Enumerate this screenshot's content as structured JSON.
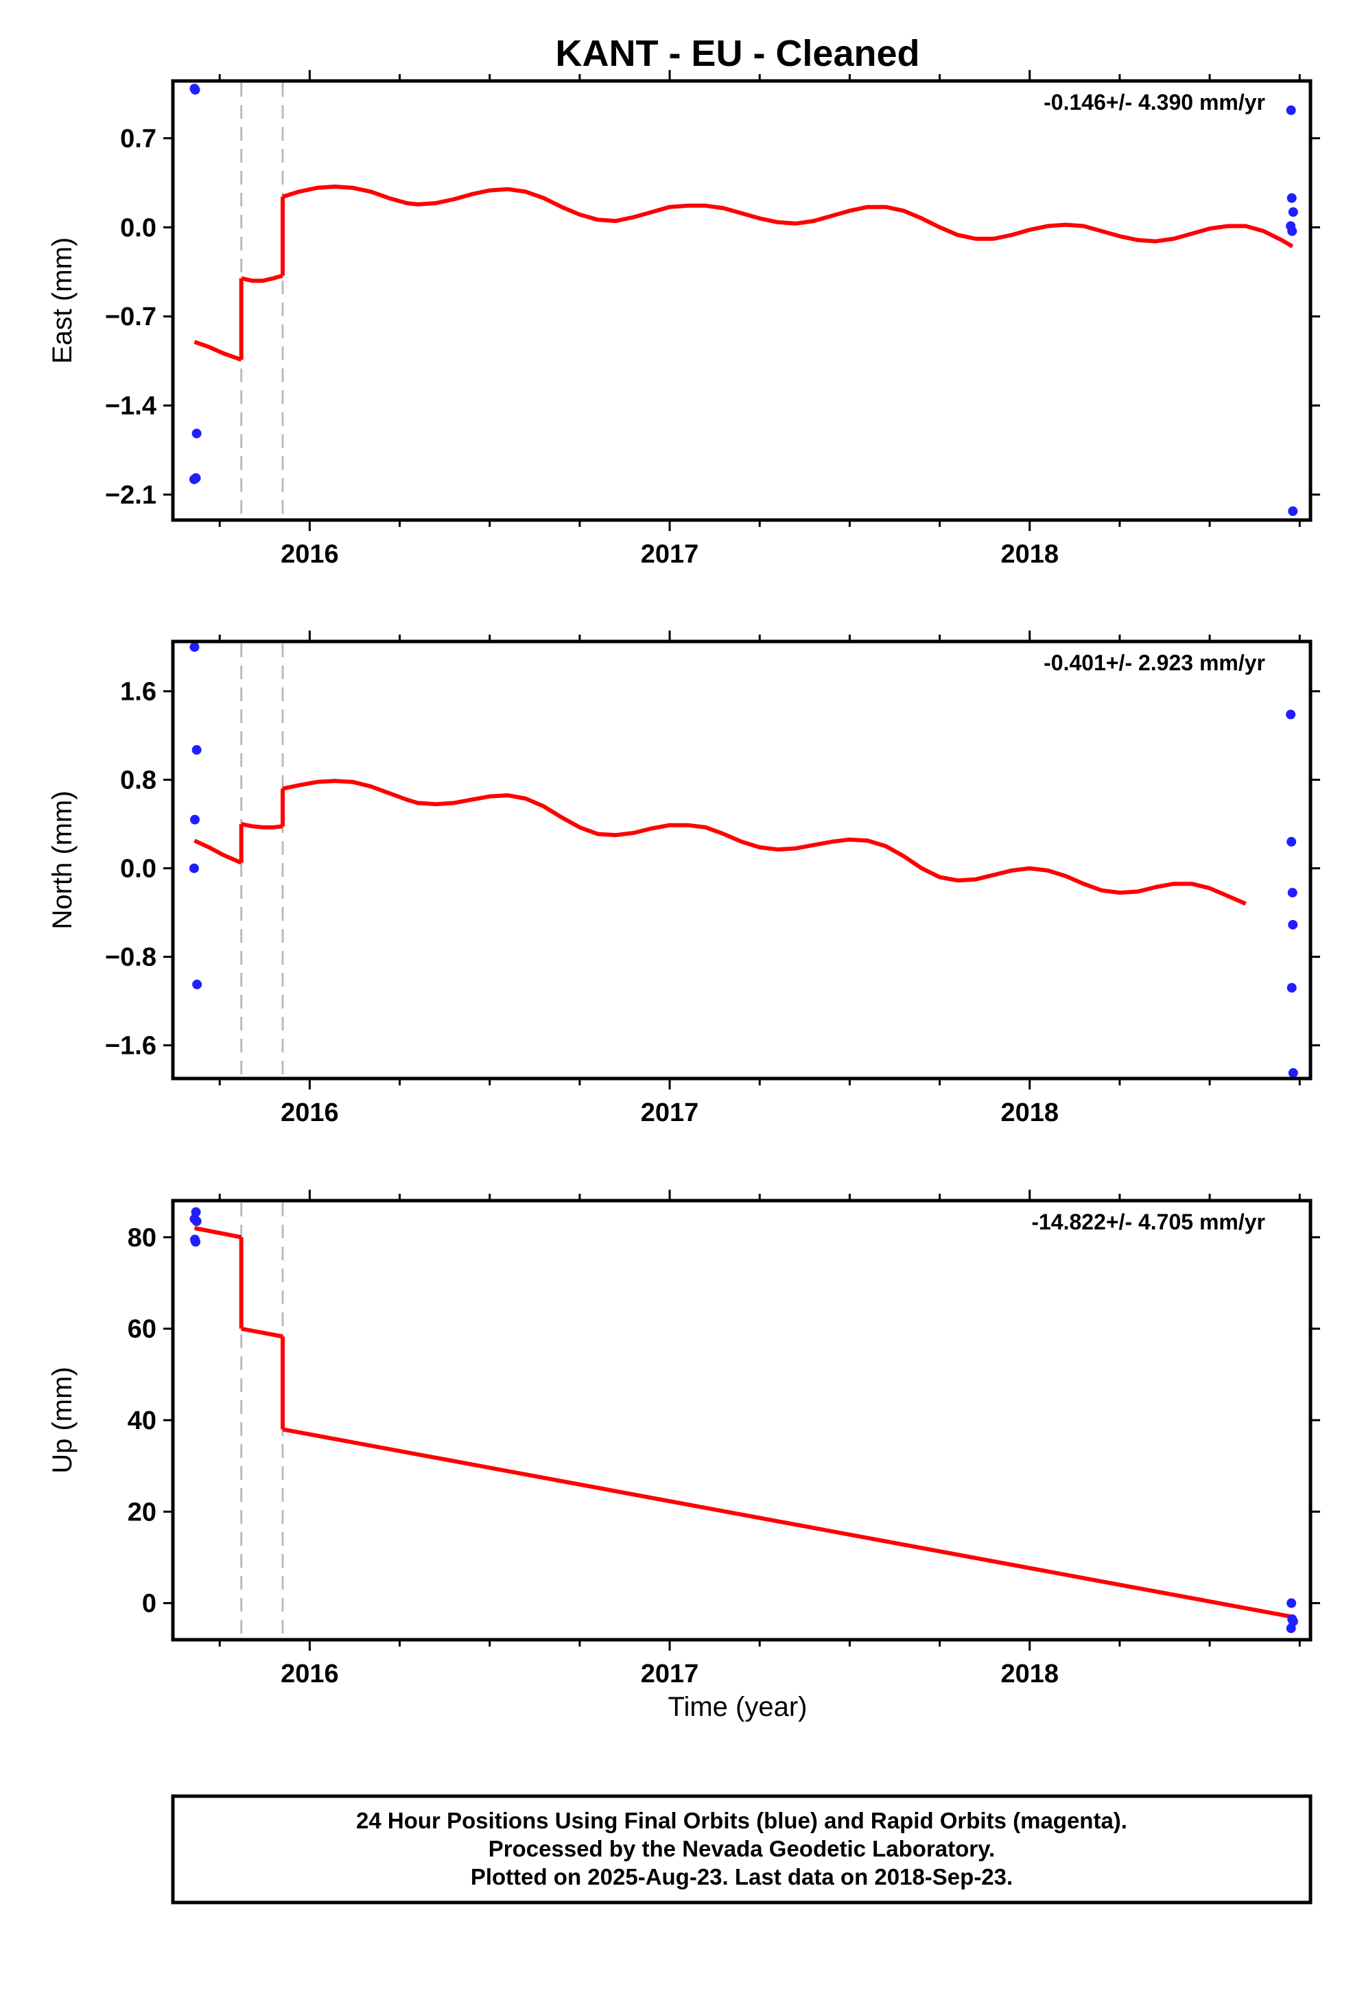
{
  "title": "KANT  - EU - Cleaned",
  "xlabel": "Time (year)",
  "footer": {
    "line1": "24 Hour Positions Using Final Orbits (blue) and Rapid Orbits (magenta).",
    "line2": "Processed by the Nevada Geodetic Laboratory.",
    "line3": "Plotted on 2025-Aug-23. Last data on 2018-Sep-23."
  },
  "colors": {
    "points": "#1f1fff",
    "model": "#ff0000",
    "breaks": "#bbbbbb",
    "axis": "#000000"
  },
  "chart_data": [
    {
      "type": "scatter",
      "name": "east",
      "ylabel": "East (mm)",
      "rate_label": "-0.146+/- 4.390 mm/yr",
      "xlim": [
        2015.62,
        2018.78
      ],
      "ylim": [
        -2.3,
        1.15
      ],
      "yticks": [
        -2.1,
        -1.4,
        -0.7,
        0.0,
        0.7
      ],
      "ytick_labels": [
        "−2.1",
        "−1.4",
        "−0.7",
        "0.0",
        "0.7"
      ],
      "xticks": [
        2016,
        2017,
        2018
      ],
      "xtick_labels": [
        "2016",
        "2017",
        "2018"
      ],
      "breaks": [
        2015.81,
        2015.925
      ],
      "points": [
        [
          2015.68,
          1.09
        ],
        [
          2015.682,
          1.08
        ],
        [
          2015.686,
          -1.62
        ],
        [
          2015.679,
          -1.98
        ],
        [
          2015.684,
          -1.97
        ],
        [
          2018.726,
          0.92
        ],
        [
          2018.728,
          0.23
        ],
        [
          2018.732,
          0.12
        ],
        [
          2018.725,
          0.01
        ],
        [
          2018.729,
          -0.03
        ],
        [
          2018.731,
          -2.23
        ]
      ],
      "model": [
        [
          [
            2015.68,
            -0.9
          ],
          [
            2015.72,
            -0.94
          ],
          [
            2015.76,
            -0.99
          ],
          [
            2015.81,
            -1.04
          ]
        ],
        [
          [
            2015.81,
            -0.4
          ],
          [
            2015.84,
            -0.42
          ],
          [
            2015.87,
            -0.42
          ],
          [
            2015.9,
            -0.4
          ],
          [
            2015.925,
            -0.38
          ]
        ],
        [
          [
            2015.925,
            0.24
          ],
          [
            2015.97,
            0.28
          ],
          [
            2016.02,
            0.31
          ],
          [
            2016.07,
            0.32
          ],
          [
            2016.12,
            0.31
          ],
          [
            2016.17,
            0.28
          ],
          [
            2016.22,
            0.23
          ],
          [
            2016.27,
            0.19
          ],
          [
            2016.3,
            0.18
          ],
          [
            2016.35,
            0.19
          ],
          [
            2016.4,
            0.22
          ],
          [
            2016.45,
            0.26
          ],
          [
            2016.5,
            0.29
          ],
          [
            2016.55,
            0.3
          ],
          [
            2016.6,
            0.28
          ],
          [
            2016.65,
            0.23
          ],
          [
            2016.7,
            0.16
          ],
          [
            2016.75,
            0.1
          ],
          [
            2016.8,
            0.06
          ],
          [
            2016.85,
            0.05
          ],
          [
            2016.9,
            0.08
          ],
          [
            2016.95,
            0.12
          ],
          [
            2017.0,
            0.16
          ],
          [
            2017.05,
            0.17
          ],
          [
            2017.1,
            0.17
          ],
          [
            2017.15,
            0.15
          ],
          [
            2017.2,
            0.11
          ],
          [
            2017.25,
            0.07
          ],
          [
            2017.3,
            0.04
          ],
          [
            2017.35,
            0.03
          ],
          [
            2017.4,
            0.05
          ],
          [
            2017.45,
            0.09
          ],
          [
            2017.5,
            0.13
          ],
          [
            2017.55,
            0.16
          ],
          [
            2017.6,
            0.16
          ],
          [
            2017.65,
            0.13
          ],
          [
            2017.7,
            0.07
          ],
          [
            2017.75,
            0.0
          ],
          [
            2017.8,
            -0.06
          ],
          [
            2017.85,
            -0.09
          ],
          [
            2017.9,
            -0.09
          ],
          [
            2017.95,
            -0.06
          ],
          [
            2018.0,
            -0.02
          ],
          [
            2018.05,
            0.01
          ],
          [
            2018.1,
            0.02
          ],
          [
            2018.15,
            0.01
          ],
          [
            2018.2,
            -0.03
          ],
          [
            2018.25,
            -0.07
          ],
          [
            2018.3,
            -0.1
          ],
          [
            2018.35,
            -0.11
          ],
          [
            2018.4,
            -0.09
          ],
          [
            2018.45,
            -0.05
          ],
          [
            2018.5,
            -0.01
          ],
          [
            2018.55,
            0.01
          ],
          [
            2018.6,
            0.01
          ],
          [
            2018.65,
            -0.03
          ],
          [
            2018.7,
            -0.1
          ],
          [
            2018.73,
            -0.15
          ]
        ]
      ]
    },
    {
      "type": "scatter",
      "name": "north",
      "ylabel": "North (mm)",
      "rate_label": "-0.401+/- 2.923 mm/yr",
      "xlim": [
        2015.62,
        2018.78
      ],
      "ylim": [
        -1.9,
        2.05
      ],
      "yticks": [
        -1.6,
        -0.8,
        0.0,
        0.8,
        1.6
      ],
      "ytick_labels": [
        "−1.6",
        "−0.8",
        "0.0",
        "0.8",
        "1.6"
      ],
      "xticks": [
        2016,
        2017,
        2018
      ],
      "xtick_labels": [
        "2016",
        "2017",
        "2018"
      ],
      "breaks": [
        2015.81,
        2015.925
      ],
      "points": [
        [
          2015.68,
          2.0
        ],
        [
          2015.686,
          1.07
        ],
        [
          2015.681,
          0.44
        ],
        [
          2015.679,
          0.0
        ],
        [
          2015.687,
          -1.05
        ],
        [
          2018.725,
          1.39
        ],
        [
          2018.727,
          0.24
        ],
        [
          2018.73,
          -0.22
        ],
        [
          2018.731,
          -0.51
        ],
        [
          2018.728,
          -1.08
        ],
        [
          2018.732,
          -1.85
        ]
      ],
      "model": [
        [
          [
            2015.68,
            0.25
          ],
          [
            2015.72,
            0.19
          ],
          [
            2015.76,
            0.12
          ],
          [
            2015.81,
            0.05
          ]
        ],
        [
          [
            2015.81,
            0.4
          ],
          [
            2015.84,
            0.38
          ],
          [
            2015.87,
            0.37
          ],
          [
            2015.9,
            0.37
          ],
          [
            2015.925,
            0.38
          ]
        ],
        [
          [
            2015.925,
            0.72
          ],
          [
            2015.97,
            0.75
          ],
          [
            2016.02,
            0.78
          ],
          [
            2016.07,
            0.79
          ],
          [
            2016.12,
            0.78
          ],
          [
            2016.17,
            0.74
          ],
          [
            2016.22,
            0.68
          ],
          [
            2016.27,
            0.62
          ],
          [
            2016.3,
            0.59
          ],
          [
            2016.35,
            0.58
          ],
          [
            2016.4,
            0.59
          ],
          [
            2016.45,
            0.62
          ],
          [
            2016.5,
            0.65
          ],
          [
            2016.55,
            0.66
          ],
          [
            2016.6,
            0.63
          ],
          [
            2016.65,
            0.56
          ],
          [
            2016.7,
            0.46
          ],
          [
            2016.75,
            0.37
          ],
          [
            2016.8,
            0.31
          ],
          [
            2016.85,
            0.3
          ],
          [
            2016.9,
            0.32
          ],
          [
            2016.95,
            0.36
          ],
          [
            2017.0,
            0.39
          ],
          [
            2017.05,
            0.39
          ],
          [
            2017.1,
            0.37
          ],
          [
            2017.15,
            0.31
          ],
          [
            2017.2,
            0.24
          ],
          [
            2017.25,
            0.19
          ],
          [
            2017.3,
            0.17
          ],
          [
            2017.35,
            0.18
          ],
          [
            2017.4,
            0.21
          ],
          [
            2017.45,
            0.24
          ],
          [
            2017.5,
            0.26
          ],
          [
            2017.55,
            0.25
          ],
          [
            2017.6,
            0.2
          ],
          [
            2017.65,
            0.11
          ],
          [
            2017.7,
            0.0
          ],
          [
            2017.75,
            -0.08
          ],
          [
            2017.8,
            -0.11
          ],
          [
            2017.85,
            -0.1
          ],
          [
            2017.9,
            -0.06
          ],
          [
            2017.95,
            -0.02
          ],
          [
            2018.0,
            0.0
          ],
          [
            2018.05,
            -0.02
          ],
          [
            2018.1,
            -0.07
          ],
          [
            2018.15,
            -0.14
          ],
          [
            2018.2,
            -0.2
          ],
          [
            2018.25,
            -0.22
          ],
          [
            2018.3,
            -0.21
          ],
          [
            2018.35,
            -0.17
          ],
          [
            2018.4,
            -0.14
          ],
          [
            2018.45,
            -0.14
          ],
          [
            2018.5,
            -0.18
          ],
          [
            2018.55,
            -0.25
          ],
          [
            2018.6,
            -0.32
          ]
        ]
      ]
    },
    {
      "type": "scatter",
      "name": "up",
      "ylabel": "Up (mm)",
      "rate_label": "-14.822+/- 4.705 mm/yr",
      "xlim": [
        2015.62,
        2018.78
      ],
      "ylim": [
        -8,
        88
      ],
      "yticks": [
        0,
        20,
        40,
        60,
        80
      ],
      "ytick_labels": [
        "0",
        "20",
        "40",
        "60",
        "80"
      ],
      "xticks": [
        2016,
        2017,
        2018
      ],
      "xtick_labels": [
        "2016",
        "2017",
        "2018"
      ],
      "breaks": [
        2015.81,
        2015.925
      ],
      "points": [
        [
          2015.68,
          84.0
        ],
        [
          2015.684,
          85.5
        ],
        [
          2015.686,
          83.5
        ],
        [
          2015.681,
          79.5
        ],
        [
          2015.683,
          79.0
        ],
        [
          2018.727,
          0.0
        ],
        [
          2018.729,
          -3.5
        ],
        [
          2018.732,
          -4.0
        ],
        [
          2018.726,
          -5.5
        ]
      ],
      "model": [
        [
          [
            2015.68,
            82.0
          ],
          [
            2015.81,
            80.0
          ]
        ],
        [
          [
            2015.81,
            60.0
          ],
          [
            2015.925,
            58.3
          ]
        ],
        [
          [
            2015.925,
            38.0
          ],
          [
            2018.73,
            -3.0
          ]
        ]
      ]
    }
  ]
}
